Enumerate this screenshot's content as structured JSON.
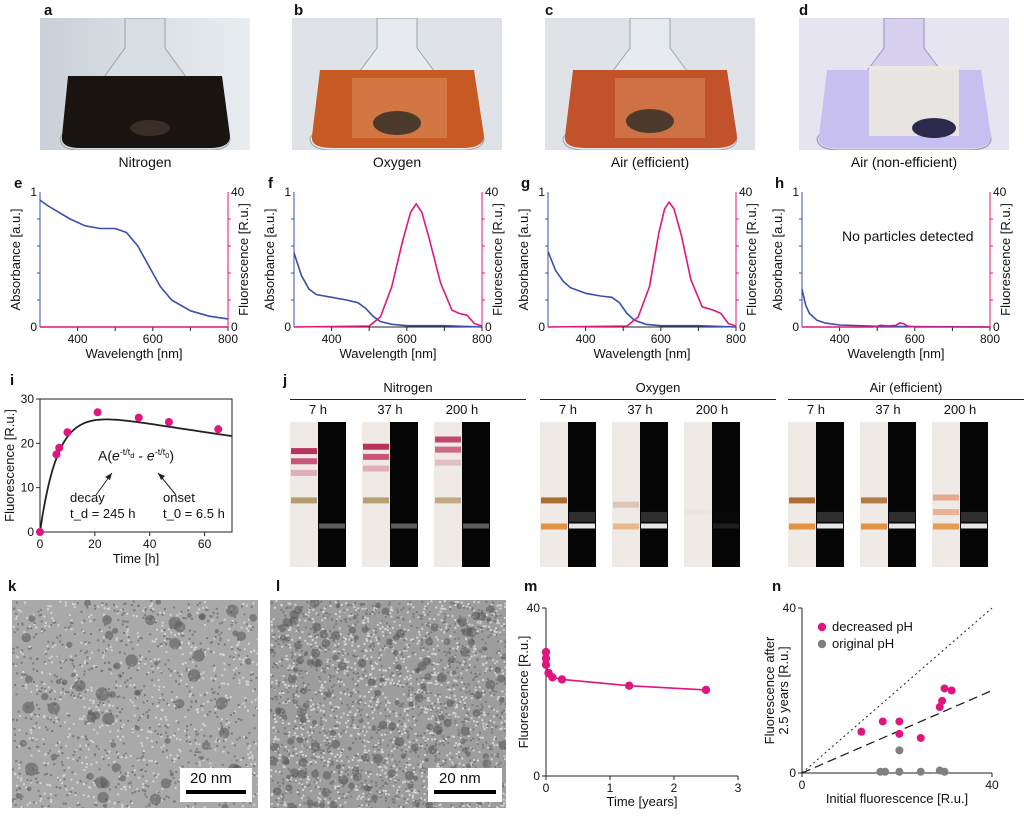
{
  "panels": {
    "a": {
      "letter": "a",
      "caption": "Nitrogen"
    },
    "b": {
      "letter": "b",
      "caption": "Oxygen"
    },
    "c": {
      "letter": "c",
      "caption": "Air (efficient)"
    },
    "d": {
      "letter": "d",
      "caption": "Air (non-efficient)"
    },
    "e": {
      "letter": "e"
    },
    "f": {
      "letter": "f"
    },
    "g": {
      "letter": "g"
    },
    "h": {
      "letter": "h",
      "annotation": "No particles detected"
    },
    "i": {
      "letter": "i",
      "formula": "A(e^{-t/td} - e^{-t/t0})",
      "decay_label": "decay",
      "decay_value": "t_d = 245 h",
      "onset_label": "onset",
      "onset_value": "t_0 = 6.5 h"
    },
    "j": {
      "letter": "j",
      "groups": [
        {
          "title": "Nitrogen",
          "times": [
            "7 h",
            "37 h",
            "200 h"
          ]
        },
        {
          "title": "Oxygen",
          "times": [
            "7 h",
            "37 h",
            "200 h"
          ]
        },
        {
          "title": "Air (efficient)",
          "times": [
            "7 h",
            "37 h",
            "200 h"
          ]
        }
      ]
    },
    "k": {
      "letter": "k",
      "scalebar": "20 nm"
    },
    "l": {
      "letter": "l",
      "scalebar": "20 nm"
    },
    "m": {
      "letter": "m"
    },
    "n": {
      "letter": "n",
      "legend": [
        "decreased pH",
        "original pH"
      ]
    }
  },
  "colors": {
    "absorbance": "#3a4fa8",
    "fluorescence": "#e0157f",
    "grey": "#808080"
  },
  "chart_data": [
    {
      "id": "e",
      "type": "line",
      "xlabel": "Wavelength [nm]",
      "ylabel": "Absorbance [a.u.]",
      "y2label": "Fluorescence [R.u.]",
      "xlim": [
        300,
        800
      ],
      "ylim": [
        0,
        1
      ],
      "y2lim": [
        0,
        40
      ],
      "xticks": [
        "400",
        "600",
        "800"
      ],
      "yticks": [
        "0",
        "1"
      ],
      "y2ticks": [
        "0",
        "40"
      ],
      "series": [
        {
          "axis": "left",
          "x": [
            300,
            320,
            350,
            380,
            420,
            460,
            500,
            530,
            560,
            590,
            620,
            650,
            700,
            750,
            800
          ],
          "y": [
            0.94,
            0.9,
            0.85,
            0.8,
            0.75,
            0.73,
            0.73,
            0.7,
            0.6,
            0.45,
            0.3,
            0.2,
            0.12,
            0.08,
            0.06
          ]
        },
        {
          "axis": "right",
          "x": [
            300,
            800
          ],
          "y": [
            0,
            0
          ]
        }
      ]
    },
    {
      "id": "f",
      "type": "line",
      "xlabel": "Wavelength [nm]",
      "ylabel": "Absorbance [a.u.]",
      "y2label": "Fluorescence [R.u.]",
      "xlim": [
        300,
        800
      ],
      "ylim": [
        0,
        1
      ],
      "y2lim": [
        0,
        40
      ],
      "xticks": [
        "400",
        "600",
        "800"
      ],
      "yticks": [
        "0",
        "1"
      ],
      "y2ticks": [
        "0",
        "40"
      ],
      "series": [
        {
          "axis": "left",
          "x": [
            300,
            320,
            340,
            360,
            400,
            440,
            470,
            490,
            510,
            530,
            560,
            600,
            700,
            800
          ],
          "y": [
            0.55,
            0.38,
            0.28,
            0.24,
            0.22,
            0.2,
            0.18,
            0.14,
            0.08,
            0.04,
            0.02,
            0.01,
            0.01,
            0.0
          ]
        },
        {
          "axis": "right",
          "x": [
            300,
            500,
            530,
            560,
            590,
            610,
            625,
            640,
            660,
            690,
            720,
            740,
            760,
            780,
            800
          ],
          "y": [
            0,
            0.3,
            3,
            12,
            26,
            34,
            36.5,
            34,
            26,
            13,
            5,
            4,
            3.5,
            1,
            0.3
          ]
        }
      ]
    },
    {
      "id": "g",
      "type": "line",
      "xlabel": "Wavelength [nm]",
      "ylabel": "Absorbance [a.u.]",
      "y2label": "Fluorescence [R.u.]",
      "xlim": [
        300,
        800
      ],
      "ylim": [
        0,
        1
      ],
      "y2lim": [
        0,
        40
      ],
      "xticks": [
        "400",
        "600",
        "800"
      ],
      "yticks": [
        "0",
        "1"
      ],
      "y2ticks": [
        "0",
        "40"
      ],
      "series": [
        {
          "axis": "left",
          "x": [
            300,
            320,
            340,
            360,
            400,
            440,
            470,
            490,
            510,
            530,
            560,
            600,
            700,
            800
          ],
          "y": [
            0.56,
            0.42,
            0.34,
            0.29,
            0.25,
            0.23,
            0.22,
            0.18,
            0.1,
            0.05,
            0.02,
            0.01,
            0.01,
            0.0
          ]
        },
        {
          "axis": "right",
          "x": [
            300,
            510,
            540,
            570,
            595,
            610,
            622,
            635,
            655,
            680,
            710,
            740,
            760,
            780,
            800
          ],
          "y": [
            0,
            0.3,
            3,
            12,
            28,
            35,
            37,
            35,
            27,
            14,
            6,
            5,
            4,
            1,
            0.3
          ]
        }
      ]
    },
    {
      "id": "h",
      "type": "line",
      "xlabel": "Wavelength [nm]",
      "ylabel": "Absorbance [a.u.]",
      "y2label": "Fluorescence [R.u.]",
      "xlim": [
        300,
        800
      ],
      "ylim": [
        0,
        1
      ],
      "y2lim": [
        0,
        40
      ],
      "xticks": [
        "400",
        "600",
        "800"
      ],
      "yticks": [
        "0",
        "1"
      ],
      "y2ticks": [
        "0",
        "40"
      ],
      "series": [
        {
          "axis": "left",
          "x": [
            300,
            310,
            320,
            340,
            360,
            400,
            450,
            500,
            800
          ],
          "y": [
            0.28,
            0.16,
            0.1,
            0.05,
            0.03,
            0.015,
            0.01,
            0.005,
            0.0
          ]
        },
        {
          "axis": "right",
          "x": [
            300,
            490,
            510,
            530,
            550,
            560,
            570,
            580,
            600,
            800
          ],
          "y": [
            0,
            0,
            0.5,
            0.3,
            0.5,
            1.2,
            1.0,
            0.3,
            0,
            0
          ]
        }
      ]
    },
    {
      "id": "i",
      "type": "scatter",
      "xlabel": "Time [h]",
      "ylabel": "Fluorescence [R.u.]",
      "xlim": [
        0,
        70
      ],
      "ylim": [
        0,
        30
      ],
      "xticks": [
        "0",
        "20",
        "40",
        "60"
      ],
      "yticks": [
        "0",
        "10",
        "20",
        "30"
      ],
      "points": {
        "x": [
          0,
          6,
          7,
          10,
          21,
          36,
          47,
          65
        ],
        "y": [
          0,
          17.5,
          19,
          22.5,
          27,
          25.8,
          24.8,
          23.2
        ]
      },
      "fit": {
        "A": 28.8,
        "td": 245,
        "t0": 6.5
      }
    },
    {
      "id": "m",
      "type": "line",
      "xlabel": "Time [years]",
      "ylabel": "Fluorescence [R.u.]",
      "xlim": [
        0,
        3
      ],
      "ylim": [
        0,
        40
      ],
      "xticks": [
        "0",
        "1",
        "2",
        "3"
      ],
      "yticks": [
        "0",
        "40"
      ],
      "points": {
        "x": [
          0,
          0,
          0,
          0.04,
          0.1,
          0.25,
          1.3,
          2.5
        ],
        "y": [
          29.5,
          28,
          26.5,
          24.5,
          23.5,
          23,
          21.5,
          20.5
        ]
      }
    },
    {
      "id": "n",
      "type": "scatter",
      "xlabel": "Initial fluorescence [R.u.]",
      "ylabel": "Fluorescence after 2.5 years [R.u.]",
      "xlim": [
        0,
        40
      ],
      "ylim": [
        0,
        40
      ],
      "xticks": [
        "0",
        "40"
      ],
      "yticks": [
        "0",
        "40"
      ],
      "series": [
        {
          "name": "decreased pH",
          "x": [
            12.5,
            17,
            20.5,
            20.5,
            25,
            29,
            29.5,
            30,
            31.5
          ],
          "y": [
            10,
            12.5,
            12.5,
            9.5,
            8.5,
            16,
            17.5,
            20.5,
            20
          ]
        },
        {
          "name": "original pH",
          "x": [
            16.5,
            17.5,
            20.5,
            20.5,
            25,
            29,
            30
          ],
          "y": [
            0.3,
            0.3,
            5.5,
            0.3,
            0.3,
            0.6,
            0.3
          ]
        }
      ],
      "reference_lines": {
        "dotted_slope": 1,
        "dashed_slope": 0.5
      }
    }
  ]
}
